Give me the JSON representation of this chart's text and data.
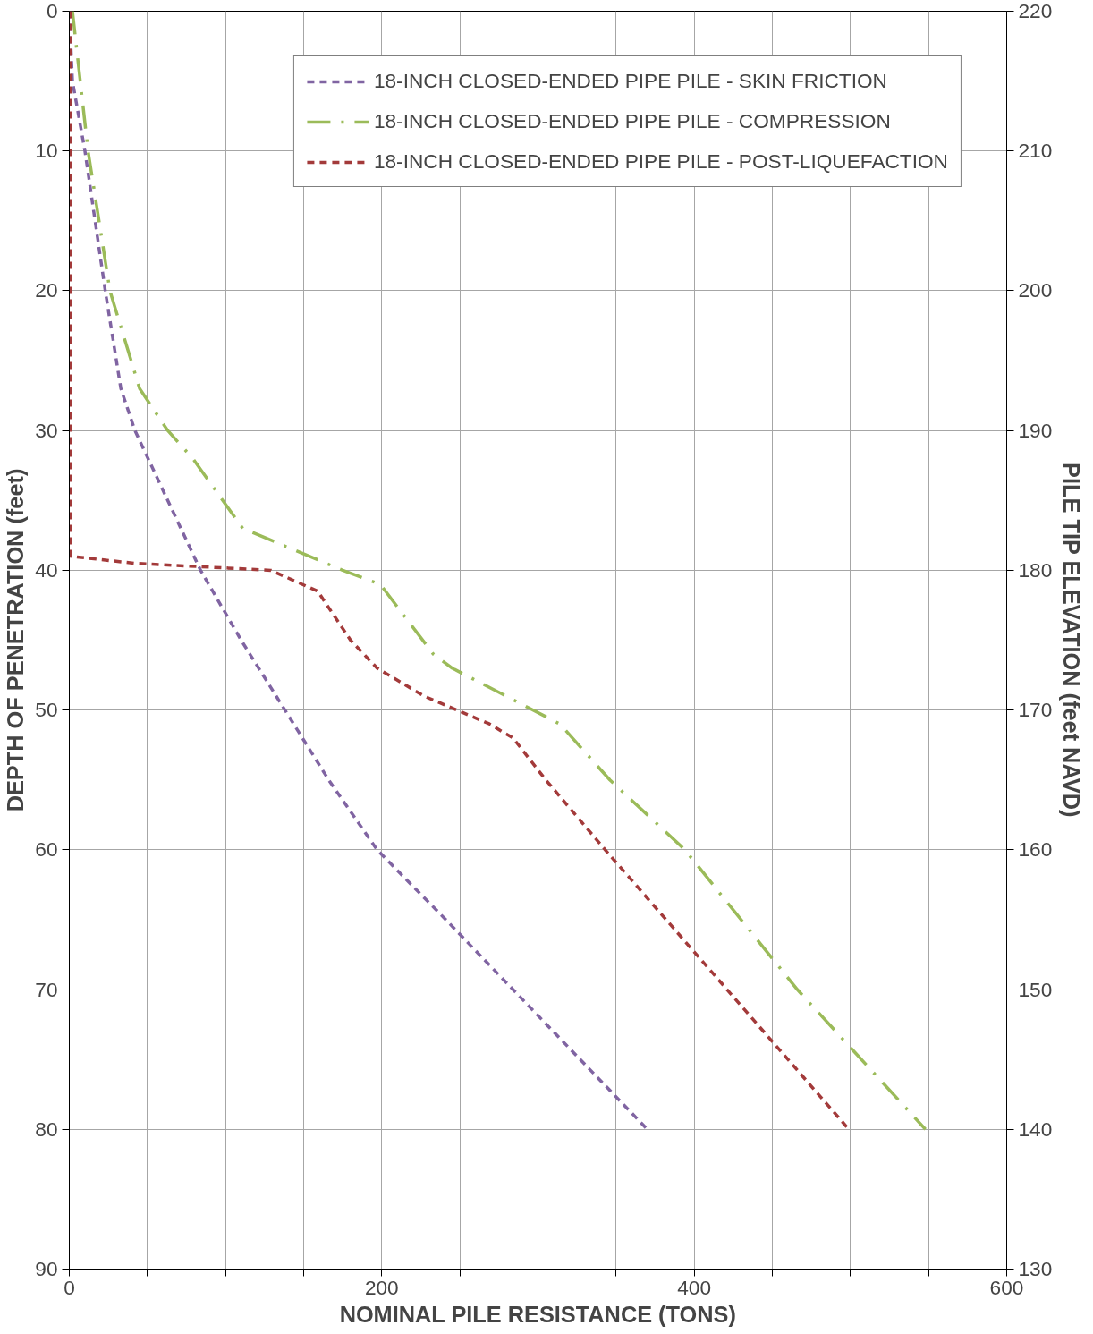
{
  "chart_data": {
    "type": "line",
    "xlabel": "NOMINAL PILE RESISTANCE (TONS)",
    "ylabel": "DEPTH OF PENETRATION (feet)",
    "y2label": "PILE TIP ELEVATION (feet NAVD)",
    "xlim": [
      0,
      600
    ],
    "xticks": [
      0,
      {
        "value": 50,
        "label": null
      },
      200,
      {
        "value": 100,
        "label": null
      },
      {
        "value": 150,
        "label": null
      },
      {
        "value": 250,
        "label": null
      },
      {
        "value": 300,
        "label": null
      },
      {
        "value": 350,
        "label": null
      },
      400,
      {
        "value": 450,
        "label": null
      },
      {
        "value": 500,
        "label": null
      },
      {
        "value": 550,
        "label": null
      },
      600
    ],
    "ylim": [
      90,
      0
    ],
    "yticks": [
      0,
      10,
      20,
      30,
      40,
      50,
      60,
      70,
      80,
      90
    ],
    "y2lim": [
      130,
      220
    ],
    "y2ticks": [
      130,
      140,
      150,
      160,
      170,
      180,
      190,
      200,
      210,
      220
    ],
    "grid": true,
    "legend": "top right",
    "marker": "none",
    "series": [
      {
        "name": "18-INCH CLOSED-ENDED PIPE PILE - SKIN FRICTION",
        "color": "#8064a2",
        "line_style": "dashed",
        "x": [
          0,
          2,
          10,
          23,
          33,
          42,
          63,
          84,
          110,
          138,
          166,
          197,
          241,
          284,
          370
        ],
        "values": [
          0,
          5,
          10,
          20,
          27,
          30,
          35,
          40,
          45,
          50,
          55,
          60,
          65,
          70,
          80
        ]
      },
      {
        "name": "18-INCH CLOSED-ENDED PIPE PILE - COMPRESSION",
        "color": "#9bbb59",
        "line_style": "dashdot",
        "x": [
          2,
          12,
          26,
          45,
          63,
          79,
          111,
          175,
          199,
          233,
          245,
          314,
          346,
          394,
          466,
          548
        ],
        "values": [
          0,
          10,
          20,
          27,
          30,
          32,
          37,
          40,
          41,
          46,
          47,
          51,
          55,
          60,
          70,
          80
        ]
      },
      {
        "name": "18-INCH CLOSED-ENDED PIPE PILE - POST-LIQUEFACTION",
        "color": "#a33a3a",
        "line_style": "dashed",
        "x": [
          1,
          1,
          42,
          129,
          159,
          180,
          197,
          227,
          248,
          269,
          284,
          305,
          343,
          421,
          499
        ],
        "values": [
          0,
          39,
          39.5,
          40,
          41.5,
          45,
          47,
          49,
          50,
          51,
          52,
          55,
          60,
          70,
          80
        ]
      }
    ]
  }
}
